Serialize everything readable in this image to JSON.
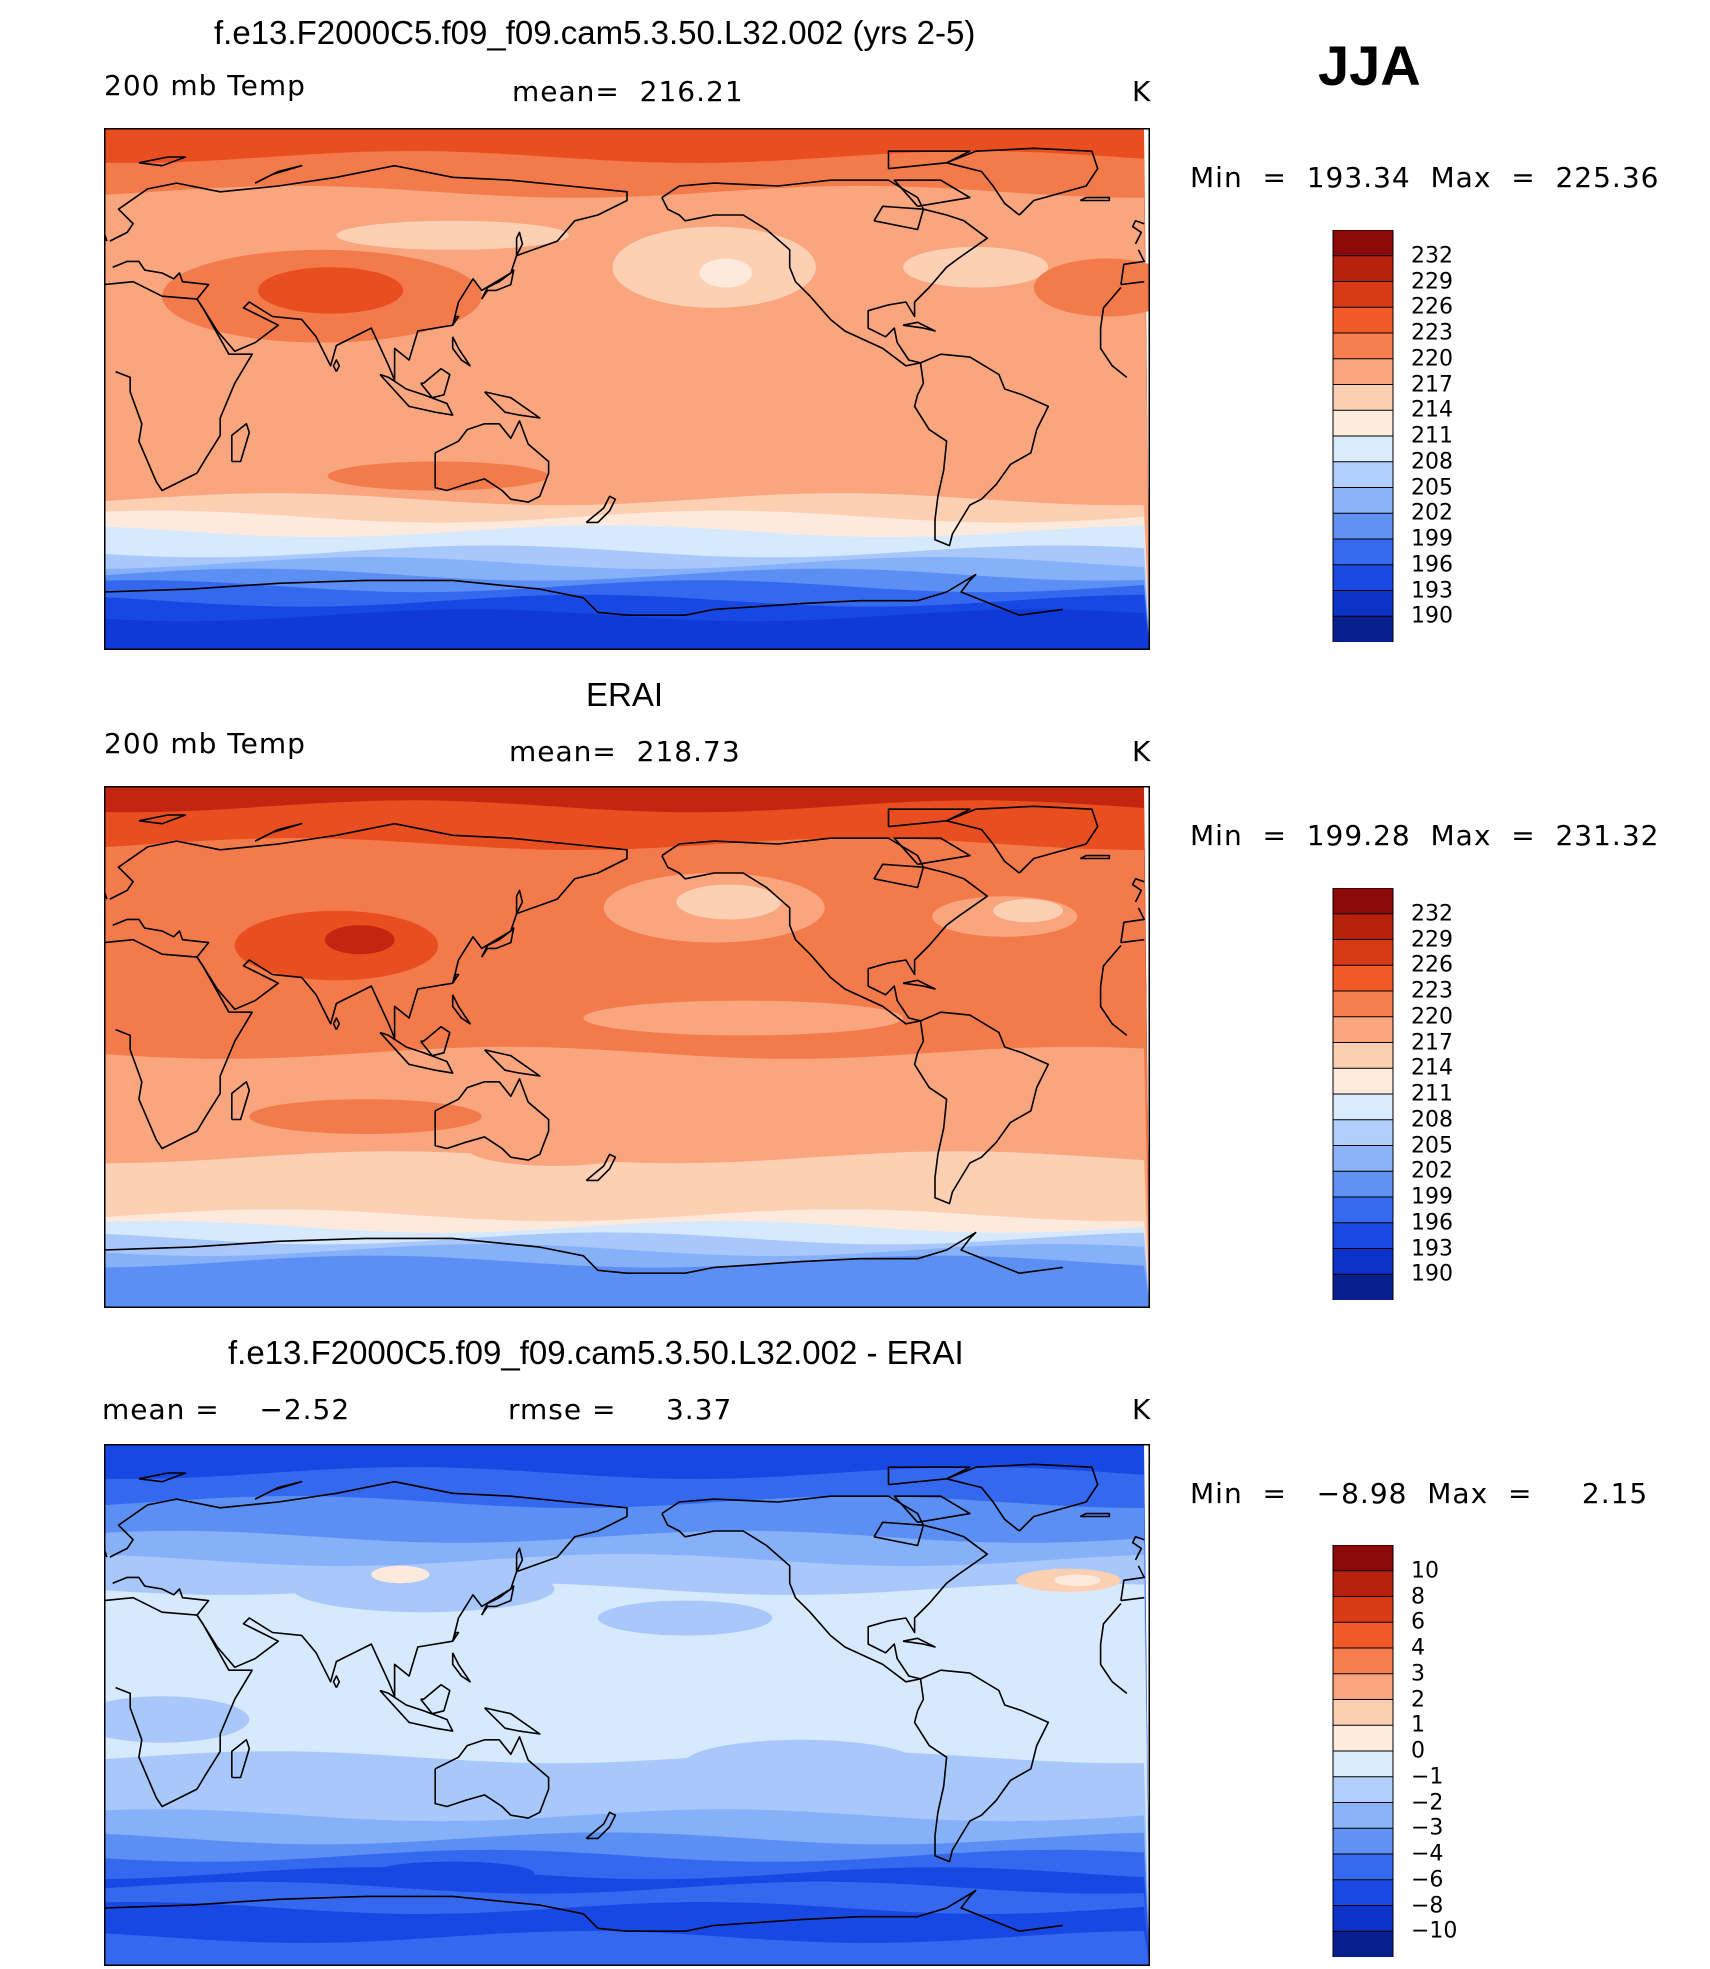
{
  "season": "JJA",
  "panels": [
    {
      "id": "model",
      "title": "f.e13.F2000C5.f09_f09.cam5.3.50.L32.002 (yrs 2-5)",
      "left_label": "200 mb Temp",
      "center_label": "mean=  216.21",
      "units": "K",
      "minmax": "Min  =  193.34  Max  =  225.36",
      "colorbar_labels": [
        "232",
        "229",
        "226",
        "223",
        "220",
        "217",
        "214",
        "211",
        "208",
        "205",
        "202",
        "199",
        "196",
        "193",
        "190"
      ],
      "bands": [
        {
          "lat": 90,
          "color": "#e84e1f"
        },
        {
          "lat": 80,
          "color": "#f37a4a"
        },
        {
          "lat": 68,
          "color": "#f9a57e"
        },
        {
          "lat": 50,
          "color": "#f9a57e"
        },
        {
          "lat": 30,
          "color": "#f9a57e"
        },
        {
          "lat": 0,
          "color": "#f9a57e"
        },
        {
          "lat": -25,
          "color": "#f9a57e"
        },
        {
          "lat": -38,
          "color": "#fdd0b4"
        },
        {
          "lat": -44,
          "color": "#fdeadc"
        },
        {
          "lat": -49,
          "color": "#d6e9fd"
        },
        {
          "lat": -56,
          "color": "#a8c8fb"
        },
        {
          "lat": -60,
          "color": "#86b0f8"
        },
        {
          "lat": -64,
          "color": "#5b8ff4"
        },
        {
          "lat": -68,
          "color": "#3468ef"
        },
        {
          "lat": -73,
          "color": "#1848e4"
        },
        {
          "lat": -78,
          "color": "#0f3ad8"
        }
      ],
      "blobs": [
        {
          "lon": 75,
          "lat": 32,
          "rx": 55,
          "ry": 16,
          "color": "#f37a4a"
        },
        {
          "lon": 78,
          "lat": 34,
          "rx": 25,
          "ry": 8,
          "color": "#e84e1f"
        },
        {
          "lon": -150,
          "lat": 42,
          "rx": 35,
          "ry": 14,
          "color": "#fdd0b4"
        },
        {
          "lon": -146,
          "lat": 40,
          "rx": 9,
          "ry": 5,
          "color": "#fdeadc"
        },
        {
          "lon": 120,
          "lat": 53,
          "rx": 40,
          "ry": 5,
          "color": "#fdd0b4"
        },
        {
          "lon": -60,
          "lat": 42,
          "rx": 25,
          "ry": 7,
          "color": "#fdd0b4"
        },
        {
          "lon": 115,
          "lat": -30,
          "rx": 38,
          "ry": 5,
          "color": "#f37a4a"
        },
        {
          "lon": -15,
          "lat": 35,
          "rx": 25,
          "ry": 10,
          "color": "#f37a4a"
        }
      ]
    },
    {
      "id": "obs",
      "title": "ERAI",
      "left_label": "200 mb Temp",
      "center_label": "mean=  218.73",
      "units": "K",
      "minmax": "Min  =  199.28  Max  =  231.32",
      "colorbar_labels": [
        "232",
        "229",
        "226",
        "223",
        "220",
        "217",
        "214",
        "211",
        "208",
        "205",
        "202",
        "199",
        "196",
        "193",
        "190"
      ],
      "bands": [
        {
          "lat": 90,
          "color": "#c42510"
        },
        {
          "lat": 83,
          "color": "#e84e1f"
        },
        {
          "lat": 70,
          "color": "#f37a4a"
        },
        {
          "lat": 58,
          "color": "#f37a4a"
        },
        {
          "lat": 20,
          "color": "#f37a4a"
        },
        {
          "lat": -2,
          "color": "#f9a57e"
        },
        {
          "lat": -38,
          "color": "#fdd0b4"
        },
        {
          "lat": -58,
          "color": "#fdeadc"
        },
        {
          "lat": -62,
          "color": "#d6e9fd"
        },
        {
          "lat": -66,
          "color": "#a8c8fb"
        },
        {
          "lat": -70,
          "color": "#86b0f8"
        },
        {
          "lat": -74,
          "color": "#5b8ff4"
        }
      ],
      "blobs": [
        {
          "lon": 80,
          "lat": 35,
          "rx": 35,
          "ry": 12,
          "color": "#e84e1f"
        },
        {
          "lon": 88,
          "lat": 37,
          "rx": 12,
          "ry": 5,
          "color": "#c42510"
        },
        {
          "lon": -150,
          "lat": 48,
          "rx": 38,
          "ry": 12,
          "color": "#f9a57e"
        },
        {
          "lon": -145,
          "lat": 50,
          "rx": 18,
          "ry": 6,
          "color": "#fdd0b4"
        },
        {
          "lon": -50,
          "lat": 45,
          "rx": 25,
          "ry": 7,
          "color": "#f9a57e"
        },
        {
          "lon": -42,
          "lat": 47,
          "rx": 12,
          "ry": 4,
          "color": "#fdd0b4"
        },
        {
          "lon": 90,
          "lat": -24,
          "rx": 40,
          "ry": 6,
          "color": "#f37a4a"
        },
        {
          "lon": -140,
          "lat": 10,
          "rx": 55,
          "ry": 6,
          "color": "#f9a57e"
        },
        {
          "lon": 155,
          "lat": -35,
          "rx": 30,
          "ry": 6,
          "color": "#f9a57e"
        }
      ]
    },
    {
      "id": "diff",
      "title": "f.e13.F2000C5.f09_f09.cam5.3.50.L32.002 - ERAI",
      "left_label": "mean =    −2.52",
      "center_label": "rmse =     3.37",
      "units": "K",
      "minmax": "Min  =   −8.98  Max  =     2.15",
      "colorbar_labels": [
        "10",
        "8",
        "6",
        "4",
        "3",
        "2",
        "1",
        "0",
        "−1",
        "−2",
        "−3",
        "−4",
        "−6",
        "−8",
        "−10"
      ],
      "bands": [
        {
          "lat": 90,
          "color": "#1848e4"
        },
        {
          "lat": 80,
          "color": "#3468ef"
        },
        {
          "lat": 70,
          "color": "#5b8ff4"
        },
        {
          "lat": 58,
          "color": "#86b0f8"
        },
        {
          "lat": 50,
          "color": "#a8c8fb"
        },
        {
          "lat": 40,
          "color": "#d6e9fd"
        },
        {
          "lat": 0,
          "color": "#d6e9fd"
        },
        {
          "lat": -18,
          "color": "#a8c8fb"
        },
        {
          "lat": -38,
          "color": "#86b0f8"
        },
        {
          "lat": -46,
          "color": "#5b8ff4"
        },
        {
          "lat": -52,
          "color": "#3468ef"
        },
        {
          "lat": -58,
          "color": "#1848e4"
        },
        {
          "lat": -63,
          "color": "#3468ef"
        },
        {
          "lat": -70,
          "color": "#1848e4"
        },
        {
          "lat": -80,
          "color": "#3468ef"
        }
      ],
      "blobs": [
        {
          "lon": 110,
          "lat": 40,
          "rx": 45,
          "ry": 8,
          "color": "#a8c8fb"
        },
        {
          "lon": -160,
          "lat": 30,
          "rx": 30,
          "ry": 6,
          "color": "#a8c8fb"
        },
        {
          "lon": -120,
          "lat": -20,
          "rx": 40,
          "ry": 8,
          "color": "#a8c8fb"
        },
        {
          "lon": 20,
          "lat": -5,
          "rx": 30,
          "ry": 8,
          "color": "#a8c8fb"
        },
        {
          "lon": -28,
          "lat": 43,
          "rx": 18,
          "ry": 4,
          "color": "#fdd0b4"
        },
        {
          "lon": -25,
          "lat": 43,
          "rx": 8,
          "ry": 2,
          "color": "#fdeadc"
        },
        {
          "lon": 102,
          "lat": 45,
          "rx": 10,
          "ry": 3,
          "color": "#fdeadc"
        },
        {
          "lon": 120,
          "lat": -58,
          "rx": 28,
          "ry": 4,
          "color": "#1848e4"
        }
      ]
    }
  ],
  "colorbar_temp": [
    "#8b0a08",
    "#b8210e",
    "#d93a16",
    "#ef5a27",
    "#f67e4e",
    "#f9a57e",
    "#fdcfb2",
    "#fdebdc",
    "#d9eafd",
    "#b1cffb",
    "#8ab3f8",
    "#5f92f3",
    "#356aee",
    "#1a4ae3",
    "#0c32c8",
    "#071f8f"
  ],
  "colorbar_diff": [
    "#8b0a08",
    "#b8210e",
    "#d93a16",
    "#ef5a27",
    "#f67e4e",
    "#f9a57e",
    "#fdcfb2",
    "#fdebdc",
    "#d9eafd",
    "#b1cffb",
    "#8ab3f8",
    "#5f92f3",
    "#356aee",
    "#1a4ae3",
    "#0c32c8",
    "#071f8f"
  ]
}
